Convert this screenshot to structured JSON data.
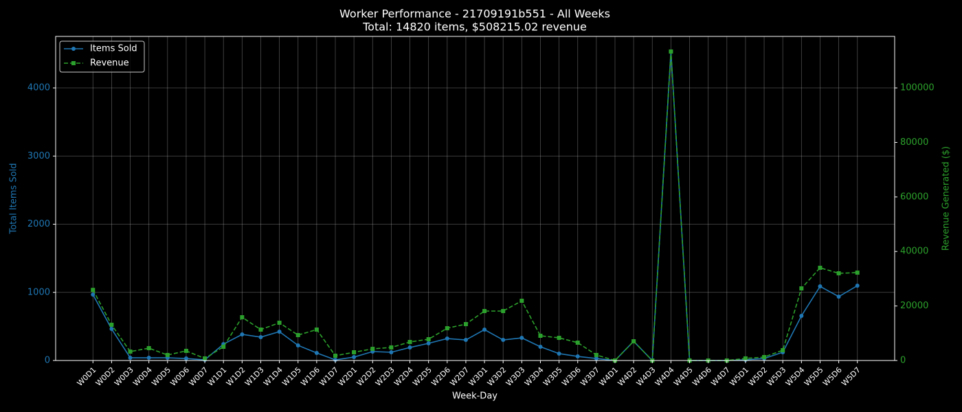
{
  "chart_data": {
    "type": "line",
    "title": "Worker Performance - 21709191b551 - All Weeks",
    "subtitle": "Total: 14820 items, $508215.02 revenue",
    "x_label": "Week-Day",
    "y_label": "Total Items Sold",
    "y2_label": "Revenue Generated ($)",
    "categories": [
      "W0D1",
      "W0D2",
      "W0D3",
      "W0D4",
      "W0D5",
      "W0D6",
      "W0D7",
      "W1D1",
      "W1D2",
      "W1D3",
      "W1D4",
      "W1D5",
      "W1D6",
      "W1D7",
      "W2D1",
      "W2D2",
      "W2D3",
      "W2D4",
      "W2D5",
      "W2D6",
      "W2D7",
      "W3D1",
      "W3D2",
      "W3D3",
      "W3D4",
      "W3D5",
      "W3D6",
      "W3D7",
      "W4D1",
      "W4D2",
      "W4D3",
      "W4D4",
      "W4D5",
      "W4D6",
      "W4D7",
      "W5D1",
      "W5D2",
      "W5D3",
      "W5D4",
      "W5D5",
      "W5D6",
      "W5D7"
    ],
    "series": [
      {
        "name": "Items Sold",
        "color": "#1f77b4",
        "marker": "circle",
        "dash": false,
        "values": [
          967,
          463,
          40,
          40,
          40,
          30,
          10,
          240,
          383,
          343,
          423,
          222,
          111,
          10,
          50,
          131,
          121,
          191,
          252,
          322,
          302,
          453,
          302,
          332,
          202,
          101,
          60,
          30,
          0,
          282,
          0,
          4534,
          0,
          0,
          0,
          10,
          30,
          121,
          655,
          1088,
          937,
          1098
        ]
      },
      {
        "name": "Revenue",
        "color": "#2ca02c",
        "marker": "square",
        "dash": true,
        "axis": "y2",
        "values": [
          25900,
          13100,
          3270,
          4530,
          2020,
          3530,
          760,
          5040,
          15870,
          11340,
          13850,
          9320,
          11340,
          1760,
          3020,
          4280,
          4790,
          6800,
          7810,
          11840,
          13350,
          18140,
          18140,
          21910,
          9070,
          8310,
          6550,
          2020,
          0,
          7050,
          0,
          113350,
          0,
          0,
          0,
          760,
          1260,
          3780,
          26450,
          34010,
          31990,
          32240
        ]
      }
    ],
    "ylim": [
      0,
      4756
    ],
    "yticks": [
      0,
      1000,
      2000,
      3000,
      4000
    ],
    "y2lim": [
      0,
      118900
    ],
    "y2ticks": [
      0,
      20000,
      40000,
      60000,
      80000,
      100000
    ],
    "grid": true,
    "legend": "upper-left"
  }
}
